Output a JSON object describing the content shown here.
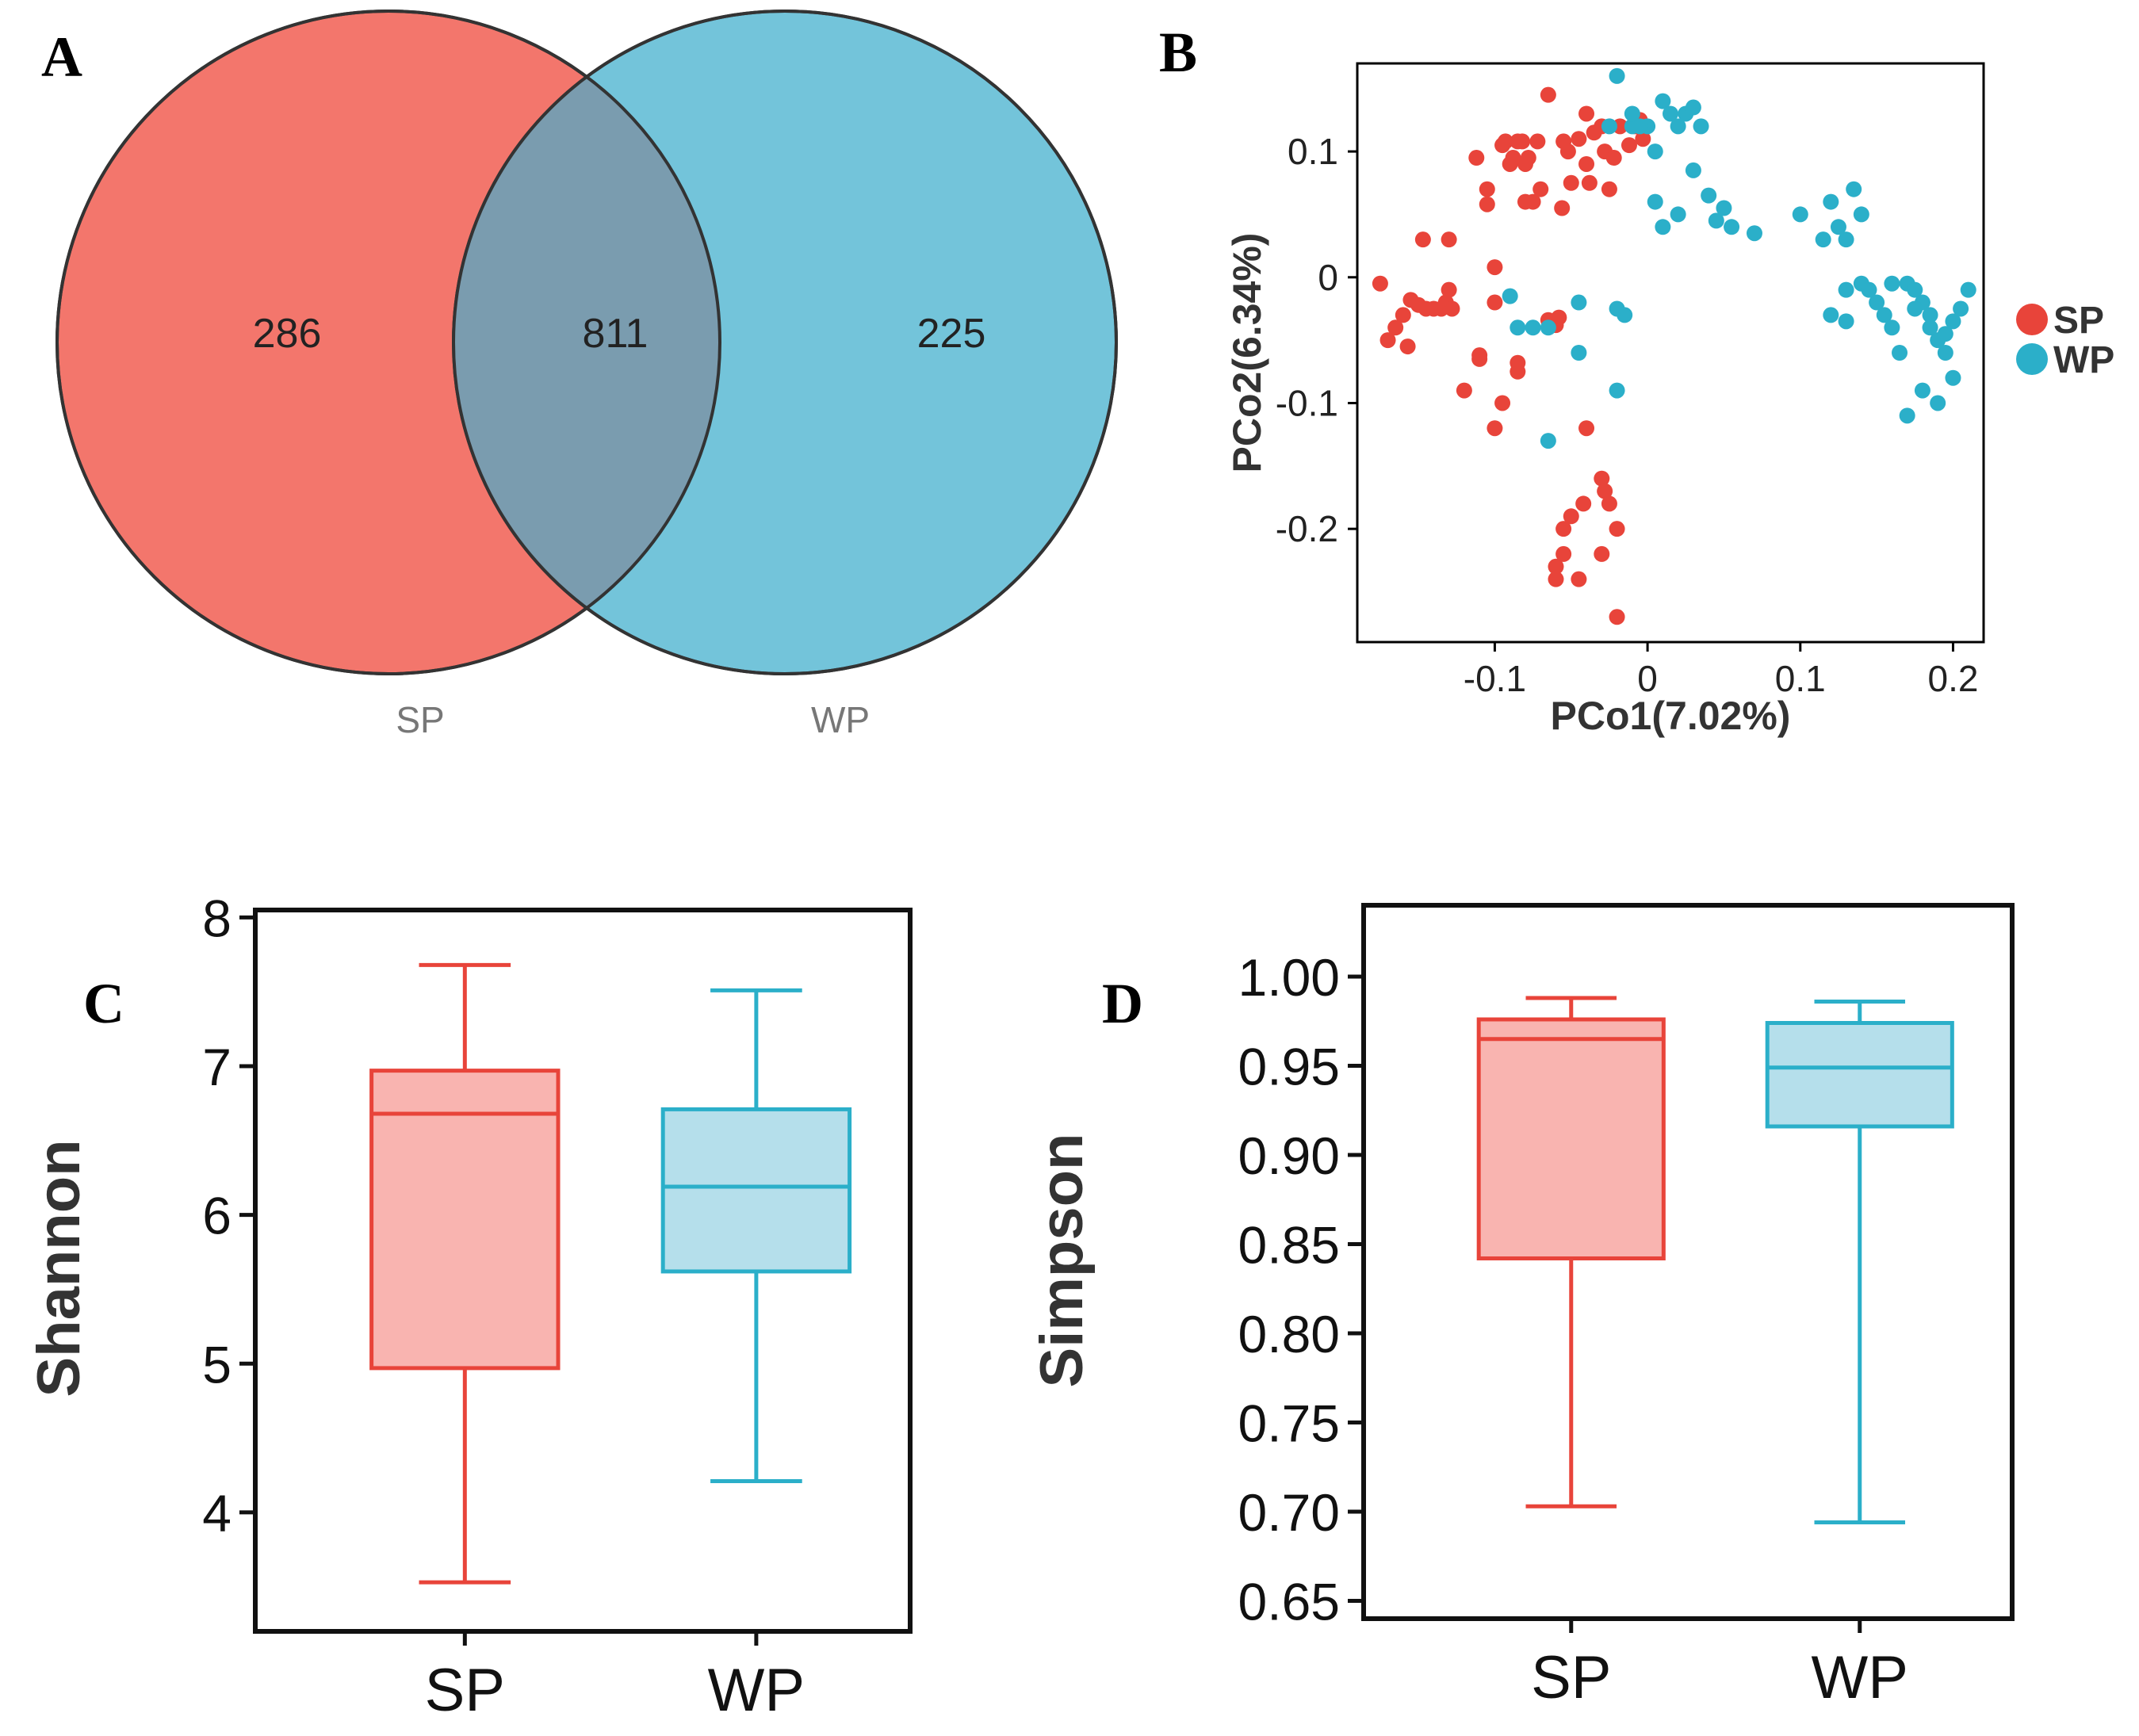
{
  "colors": {
    "sp": "#e8443a",
    "wp": "#2bafc9",
    "sp_fill": "#f3766c",
    "wp_fill": "#73c4da",
    "overlap_fill": "#7a9caf",
    "sp_box_fill": "#f9b4b0",
    "wp_box_fill": "#b5dfeb"
  },
  "panels": {
    "a": "A",
    "b": "B",
    "c": "C",
    "d": "D"
  },
  "chart_data": [
    {
      "panel": "A",
      "type": "venn",
      "sets": [
        {
          "name": "SP",
          "unique": 286
        },
        {
          "name": "WP",
          "unique": 225
        }
      ],
      "intersection": 811,
      "labels": {
        "sp_count": "286",
        "overlap_count": "811",
        "wp_count": "225"
      }
    },
    {
      "panel": "B",
      "type": "scatter",
      "xlabel": "PCo1(7.02%)",
      "ylabel": "PCo2(6.34%)",
      "xlim": [
        -0.19,
        0.22
      ],
      "ylim": [
        -0.29,
        0.17
      ],
      "xticks": [
        -0.1,
        0,
        0.1,
        0.2
      ],
      "xtick_labels": [
        "-0.1",
        "0",
        "0.1",
        "0.2"
      ],
      "yticks": [
        0.1,
        0,
        -0.1,
        -0.2
      ],
      "ytick_labels": [
        "0.1",
        "0",
        "-0.1",
        "-0.2"
      ],
      "legend": [
        "SP",
        "WP"
      ],
      "series": [
        {
          "name": "SP",
          "points": [
            [
              -0.175,
              -0.005
            ],
            [
              -0.17,
              -0.05
            ],
            [
              -0.165,
              -0.04
            ],
            [
              -0.16,
              -0.03
            ],
            [
              -0.157,
              -0.055
            ],
            [
              -0.155,
              -0.018
            ],
            [
              -0.15,
              -0.022
            ],
            [
              -0.147,
              0.03
            ],
            [
              -0.145,
              -0.025
            ],
            [
              -0.14,
              -0.025
            ],
            [
              -0.135,
              -0.025
            ],
            [
              -0.132,
              -0.02
            ],
            [
              -0.13,
              -0.01
            ],
            [
              -0.128,
              -0.025
            ],
            [
              -0.13,
              0.03
            ],
            [
              -0.112,
              0.095
            ],
            [
              -0.11,
              -0.062
            ],
            [
              -0.105,
              0.07
            ],
            [
              -0.105,
              0.058
            ],
            [
              -0.1,
              -0.02
            ],
            [
              -0.1,
              0.008
            ],
            [
              -0.095,
              0.105
            ],
            [
              -0.093,
              0.108
            ],
            [
              -0.09,
              0.09
            ],
            [
              -0.088,
              0.095
            ],
            [
              -0.085,
              -0.068
            ],
            [
              -0.085,
              0.108
            ],
            [
              -0.082,
              0.108
            ],
            [
              -0.08,
              0.09
            ],
            [
              -0.078,
              0.095
            ],
            [
              -0.075,
              0.06
            ],
            [
              -0.072,
              0.108
            ],
            [
              -0.07,
              0.07
            ],
            [
              -0.065,
              -0.034
            ],
            [
              -0.06,
              -0.038
            ],
            [
              -0.058,
              -0.032
            ],
            [
              -0.056,
              0.055
            ],
            [
              -0.055,
              0.108
            ],
            [
              -0.052,
              0.1
            ],
            [
              -0.05,
              0.075
            ],
            [
              -0.045,
              0.11
            ],
            [
              -0.04,
              0.13
            ],
            [
              -0.04,
              0.09
            ],
            [
              -0.038,
              0.075
            ],
            [
              -0.035,
              0.115
            ],
            [
              -0.03,
              0.12
            ],
            [
              -0.028,
              0.1
            ],
            [
              -0.025,
              0.07
            ],
            [
              -0.022,
              0.095
            ],
            [
              -0.018,
              0.12
            ],
            [
              -0.012,
              0.105
            ],
            [
              -0.008,
              0.12
            ],
            [
              -0.005,
              0.125
            ],
            [
              -0.003,
              0.11
            ],
            [
              -0.11,
              -0.065
            ],
            [
              -0.095,
              -0.1
            ],
            [
              -0.1,
              -0.12
            ],
            [
              -0.085,
              -0.075
            ],
            [
              -0.04,
              -0.12
            ],
            [
              -0.03,
              -0.16
            ],
            [
              -0.028,
              -0.17
            ],
            [
              -0.025,
              -0.18
            ],
            [
              -0.02,
              -0.2
            ],
            [
              -0.042,
              -0.18
            ],
            [
              -0.05,
              -0.19
            ],
            [
              -0.055,
              -0.2
            ],
            [
              -0.06,
              -0.24
            ],
            [
              -0.06,
              -0.23
            ],
            [
              -0.055,
              -0.22
            ],
            [
              -0.045,
              -0.24
            ],
            [
              -0.03,
              -0.22
            ],
            [
              -0.02,
              -0.27
            ],
            [
              -0.065,
              0.145
            ],
            [
              -0.08,
              0.06
            ],
            [
              -0.12,
              -0.09
            ]
          ]
        },
        {
          "name": "WP",
          "points": [
            [
              -0.02,
              0.16
            ],
            [
              -0.01,
              0.12
            ],
            [
              0.0,
              0.12
            ],
            [
              0.005,
              0.1
            ],
            [
              0.01,
              0.14
            ],
            [
              0.015,
              0.13
            ],
            [
              0.02,
              0.12
            ],
            [
              0.025,
              0.13
            ],
            [
              0.03,
              0.135
            ],
            [
              0.035,
              0.12
            ],
            [
              0.03,
              0.085
            ],
            [
              0.04,
              0.065
            ],
            [
              0.045,
              0.045
            ],
            [
              0.05,
              0.055
            ],
            [
              0.055,
              0.04
            ],
            [
              0.07,
              0.035
            ],
            [
              0.02,
              0.05
            ],
            [
              0.01,
              0.04
            ],
            [
              0.005,
              0.06
            ],
            [
              0.1,
              0.05
            ],
            [
              0.12,
              0.06
            ],
            [
              0.125,
              0.04
            ],
            [
              0.13,
              0.03
            ],
            [
              0.14,
              0.05
            ],
            [
              0.135,
              0.07
            ],
            [
              0.115,
              0.03
            ],
            [
              0.13,
              -0.01
            ],
            [
              0.14,
              -0.005
            ],
            [
              0.145,
              -0.01
            ],
            [
              0.15,
              -0.02
            ],
            [
              0.155,
              -0.03
            ],
            [
              0.16,
              -0.04
            ],
            [
              0.165,
              -0.06
            ],
            [
              0.17,
              -0.005
            ],
            [
              0.175,
              -0.01
            ],
            [
              0.18,
              -0.02
            ],
            [
              0.185,
              -0.03
            ],
            [
              0.19,
              -0.05
            ],
            [
              0.195,
              -0.06
            ],
            [
              0.2,
              -0.035
            ],
            [
              0.205,
              -0.025
            ],
            [
              0.21,
              -0.01
            ],
            [
              0.2,
              -0.08
            ],
            [
              0.19,
              -0.1
            ],
            [
              0.18,
              -0.09
            ],
            [
              0.17,
              -0.11
            ],
            [
              0.185,
              -0.04
            ],
            [
              0.195,
              -0.045
            ],
            [
              0.12,
              -0.03
            ],
            [
              0.13,
              -0.035
            ],
            [
              0.16,
              -0.005
            ],
            [
              0.175,
              -0.025
            ],
            [
              -0.09,
              -0.015
            ],
            [
              -0.085,
              -0.04
            ],
            [
              -0.075,
              -0.04
            ],
            [
              -0.065,
              -0.04
            ],
            [
              -0.045,
              -0.02
            ],
            [
              -0.045,
              -0.06
            ],
            [
              -0.02,
              -0.025
            ],
            [
              -0.02,
              -0.09
            ],
            [
              -0.015,
              -0.03
            ],
            [
              -0.065,
              -0.13
            ],
            [
              -0.025,
              0.12
            ],
            [
              -0.005,
              0.12
            ],
            [
              -0.01,
              0.13
            ]
          ]
        }
      ]
    },
    {
      "panel": "C",
      "type": "box",
      "ylabel": "Shannon",
      "ylim": [
        3.2,
        8.05
      ],
      "yticks": [
        4,
        5,
        6,
        7,
        8
      ],
      "ytick_labels": [
        "4",
        "5",
        "6",
        "7",
        "8"
      ],
      "categories": [
        "SP",
        "WP"
      ],
      "boxes": [
        {
          "name": "SP",
          "min": 3.53,
          "q1": 4.97,
          "median": 6.68,
          "q3": 6.97,
          "max": 7.68
        },
        {
          "name": "WP",
          "min": 4.21,
          "q1": 5.62,
          "median": 6.19,
          "q3": 6.71,
          "max": 7.51
        }
      ]
    },
    {
      "panel": "D",
      "type": "box",
      "ylabel": "Simpson",
      "ylim": [
        0.64,
        1.04
      ],
      "yticks": [
        0.65,
        0.7,
        0.75,
        0.8,
        0.85,
        0.9,
        0.95,
        1.0
      ],
      "ytick_labels": [
        "0.65",
        "0.70",
        "0.75",
        "0.80",
        "0.85",
        "0.90",
        "0.95",
        "1.00"
      ],
      "categories": [
        "SP",
        "WP"
      ],
      "boxes": [
        {
          "name": "SP",
          "min": 0.703,
          "q1": 0.842,
          "median": 0.965,
          "q3": 0.976,
          "max": 0.988
        },
        {
          "name": "WP",
          "min": 0.694,
          "q1": 0.916,
          "median": 0.949,
          "q3": 0.974,
          "max": 0.986
        }
      ]
    }
  ]
}
